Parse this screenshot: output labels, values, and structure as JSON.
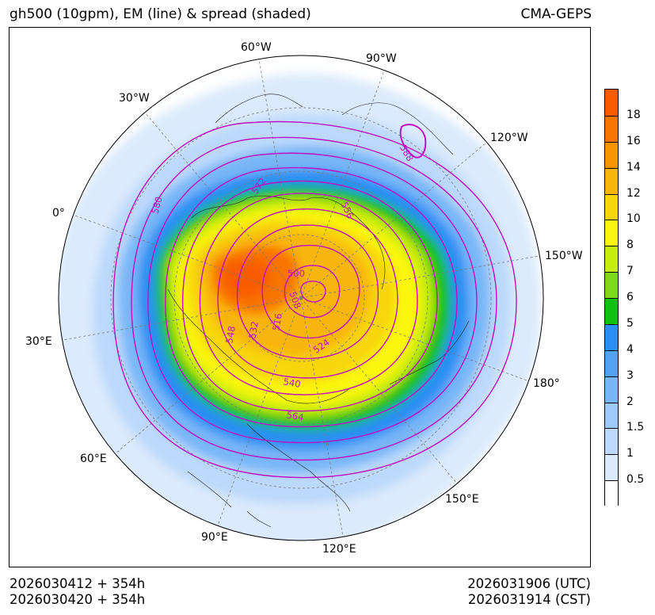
{
  "title": {
    "left": "gh500 (10gpm), EM (line) & spread (shaded)",
    "right": "CMA-GEPS"
  },
  "footer": {
    "init_utc": "2026030412 + 354h",
    "init_cst": "2026030420 + 354h",
    "valid_utc": "2026031906 (UTC)",
    "valid_cst": "2026031914 (CST)"
  },
  "map": {
    "projection": "north-polar-stereographic",
    "longitude_labels": [
      "60°W",
      "90°W",
      "120°W",
      "150°W",
      "180°",
      "150°E",
      "120°E",
      "90°E",
      "60°E",
      "30°E",
      "0°",
      "30°W"
    ],
    "contour_labels": [
      "500",
      "508",
      "516",
      "524",
      "532",
      "540",
      "548",
      "556",
      "564",
      "572",
      "580",
      "588"
    ],
    "contour_color": "#c010c0"
  },
  "colorbar": {
    "labels": [
      "0.5",
      "1",
      "1.5",
      "2",
      "3",
      "4",
      "5",
      "6",
      "7",
      "8",
      "10",
      "12",
      "14",
      "16",
      "18"
    ],
    "colors": [
      "#ffffff",
      "#dbeafc",
      "#bcd9fb",
      "#9ccafa",
      "#78b6f7",
      "#52a1f5",
      "#2b8ef3",
      "#12c012",
      "#7fd91a",
      "#c7ec10",
      "#fbf610",
      "#f8d50c",
      "#f8b50c",
      "#f89500",
      "#f87300",
      "#f85b00"
    ]
  }
}
